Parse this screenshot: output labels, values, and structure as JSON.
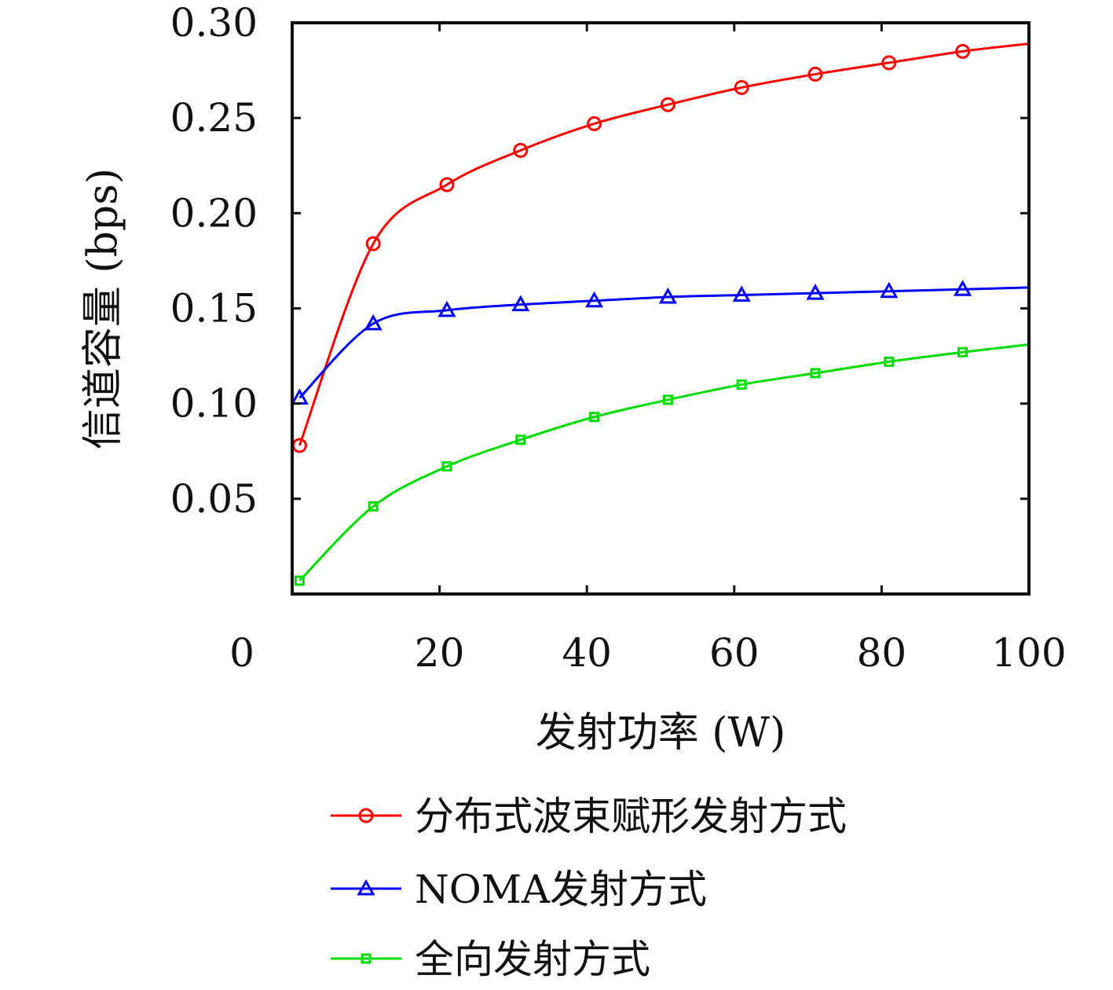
{
  "chart_data": {
    "type": "line",
    "xlabel": "发射功率 (W)",
    "ylabel": "信道容量 (bps)",
    "xlim": [
      0,
      100
    ],
    "ylim": [
      0,
      0.3
    ],
    "xticks": [
      0,
      20,
      40,
      60,
      80,
      100
    ],
    "yticks": [
      0.05,
      0.1,
      0.15,
      0.2,
      0.25,
      0.3
    ],
    "xtick_labels": [
      "0",
      "20",
      "40",
      "60",
      "80",
      "100"
    ],
    "ytick_labels": [
      "0.05",
      "0.10",
      "0.15",
      "0.20",
      "0.25",
      "0.30"
    ],
    "grid": false,
    "legend_position": "bottom",
    "series": [
      {
        "name": "分布式波束赋形发射方式",
        "color": "#ff0000",
        "marker": "circle",
        "x": [
          1,
          11,
          21,
          31,
          41,
          51,
          61,
          71,
          81,
          91,
          100
        ],
        "y": [
          0.078,
          0.184,
          0.215,
          0.233,
          0.247,
          0.257,
          0.266,
          0.273,
          0.279,
          0.285,
          0.289
        ]
      },
      {
        "name": "NOMA发射方式",
        "color": "#0000ff",
        "marker": "triangle",
        "x": [
          1,
          11,
          21,
          31,
          41,
          51,
          61,
          71,
          81,
          91,
          100
        ],
        "y": [
          0.103,
          0.142,
          0.149,
          0.152,
          0.154,
          0.156,
          0.157,
          0.158,
          0.159,
          0.16,
          0.161
        ]
      },
      {
        "name": "全向发射方式",
        "color": "#00dd00",
        "marker": "square",
        "x": [
          1,
          11,
          21,
          31,
          41,
          51,
          61,
          71,
          81,
          91,
          100
        ],
        "y": [
          0.007,
          0.046,
          0.067,
          0.081,
          0.093,
          0.102,
          0.11,
          0.116,
          0.122,
          0.127,
          0.131
        ]
      }
    ]
  }
}
